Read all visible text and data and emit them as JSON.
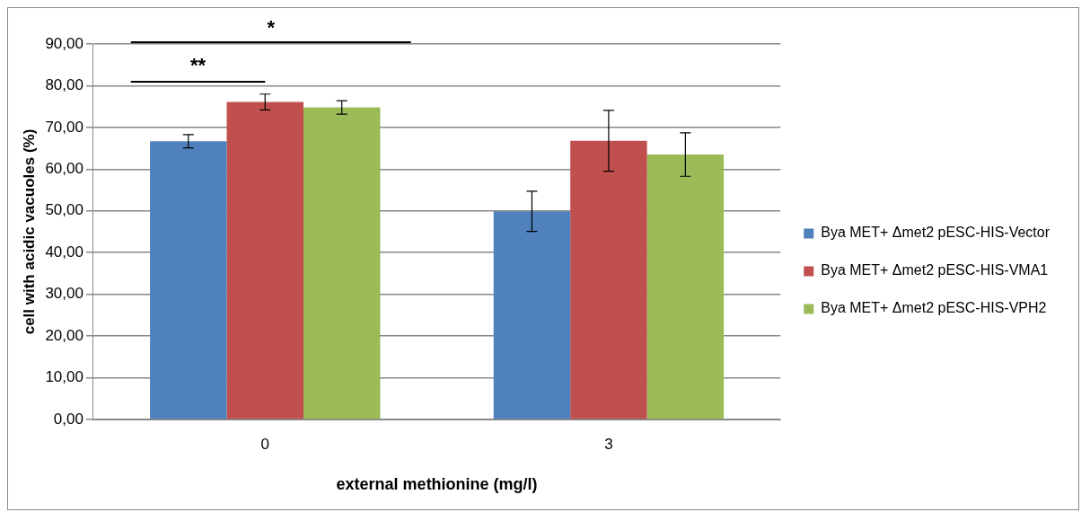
{
  "chart_data": {
    "type": "bar",
    "xlabel": "external methionine (mg/l)",
    "ylabel": "cell with acidic vacuoles (%)",
    "categories": [
      "0",
      "3"
    ],
    "series": [
      {
        "name": "Bya MET+ Δmet2 pESC-HIS-Vector",
        "color": "#4f81bd",
        "values": [
          66.7,
          49.9
        ],
        "errors": [
          1.6,
          4.8
        ]
      },
      {
        "name": "Bya MET+ Δmet2 pESC-HIS-VMA1",
        "color": "#c0504d",
        "values": [
          76.1,
          66.8
        ],
        "errors": [
          1.9,
          7.3
        ]
      },
      {
        "name": "Bya MET+ Δmet2 pESC-HIS-VPH2",
        "color": "#9bbb59",
        "values": [
          74.8,
          63.5
        ],
        "errors": [
          1.6,
          5.2
        ]
      }
    ],
    "ylim": [
      0,
      90
    ],
    "yticks": [
      {
        "value": 0,
        "label": "0,00"
      },
      {
        "value": 10,
        "label": "10,00"
      },
      {
        "value": 20,
        "label": "20,00"
      },
      {
        "value": 30,
        "label": "30,00"
      },
      {
        "value": 40,
        "label": "40,00"
      },
      {
        "value": 50,
        "label": "50,00"
      },
      {
        "value": 60,
        "label": "60,00"
      },
      {
        "value": 70,
        "label": "70,00"
      },
      {
        "value": 80,
        "label": "80,00"
      },
      {
        "value": 90,
        "label": "90,00"
      }
    ],
    "grid": "y",
    "legend": "right",
    "annotations": [
      "**",
      "*"
    ]
  }
}
